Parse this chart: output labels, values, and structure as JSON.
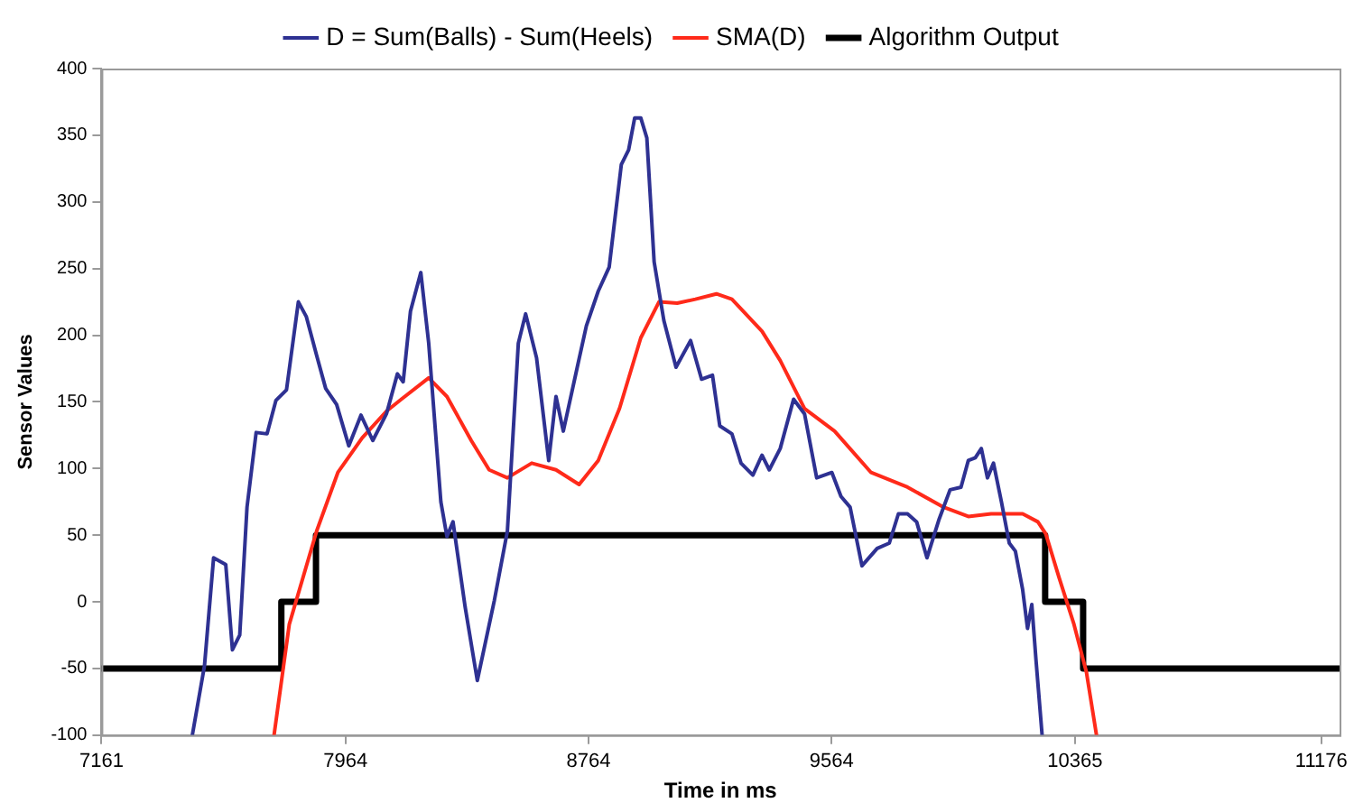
{
  "chart_data": {
    "type": "line",
    "xlabel": "Time in ms",
    "ylabel": "Sensor Values",
    "xlim": [
      7161,
      11236
    ],
    "xticks": [
      7161,
      7964,
      8764,
      9564,
      10365,
      11176
    ],
    "ylim": [
      -100,
      400
    ],
    "yticks": [
      -100,
      -50,
      0,
      50,
      100,
      150,
      200,
      250,
      300,
      350,
      400
    ],
    "legend": "top",
    "marker": "none",
    "series": [
      {
        "name": "D = Sum(Balls) - Sum(Heels)",
        "color": "#2e3192",
        "x": [
          7460,
          7500,
          7530,
          7570,
          7592,
          7616,
          7640,
          7670,
          7706,
          7735,
          7770,
          7809,
          7835,
          7869,
          7899,
          7935,
          7975,
          8015,
          8054,
          8099,
          8135,
          8154,
          8178,
          8212,
          8238,
          8278,
          8298,
          8318,
          8358,
          8398,
          8454,
          8497,
          8533,
          8557,
          8593,
          8633,
          8657,
          8681,
          8727,
          8757,
          8796,
          8832,
          8872,
          8896,
          8916,
          8936,
          8956,
          8980,
          9012,
          9052,
          9100,
          9136,
          9172,
          9196,
          9236,
          9266,
          9305,
          9335,
          9359,
          9395,
          9439,
          9475,
          9515,
          9565,
          9595,
          9625,
          9664,
          9714,
          9754,
          9784,
          9814,
          9844,
          9878,
          9918,
          9954,
          9990,
          10014,
          10037,
          10057,
          10077,
          10097,
          10123,
          10149,
          10169,
          10193,
          10209,
          10223,
          10237,
          10257
        ],
        "values": [
          -100,
          -48,
          33,
          28,
          -36,
          -25,
          71,
          127,
          126,
          151,
          159,
          225,
          214,
          185,
          160,
          148,
          117,
          140,
          121,
          141,
          171,
          165,
          218,
          247,
          194,
          75,
          49,
          60,
          -4,
          -59,
          1,
          53,
          194,
          216,
          183,
          106,
          154,
          128,
          176,
          207,
          233,
          251,
          328,
          339,
          363,
          363,
          348,
          255,
          211,
          176,
          196,
          167,
          170,
          132,
          126,
          104,
          95,
          110,
          99,
          115,
          152,
          141,
          93,
          97,
          79,
          71,
          27,
          40,
          44,
          66,
          66,
          60,
          33,
          62,
          84,
          86,
          106,
          108,
          115,
          93,
          104,
          75,
          44,
          38,
          9,
          -20,
          -2,
          -44,
          -100
        ]
      },
      {
        "name": "SMA(D)",
        "color": "#ff2a1a",
        "x": [
          7729,
          7779,
          7869,
          7939,
          8019,
          8099,
          8148,
          8238,
          8298,
          8378,
          8437,
          8497,
          8577,
          8657,
          8733,
          8796,
          8866,
          8936,
          8996,
          9056,
          9116,
          9185,
          9236,
          9335,
          9395,
          9475,
          9574,
          9694,
          9814,
          9933,
          10014,
          10089,
          10193,
          10243,
          10269,
          10313,
          10362,
          10403,
          10436
        ],
        "values": [
          -100,
          -17,
          53,
          97,
          123,
          143,
          152,
          168,
          154,
          121,
          99,
          93,
          104,
          99,
          88,
          106,
          145,
          198,
          225,
          224,
          227,
          231,
          227,
          203,
          181,
          145,
          128,
          97,
          86,
          71,
          64,
          66,
          66,
          60,
          51,
          18,
          -17,
          -53,
          -100
        ]
      },
      {
        "name": "Algorithm Output",
        "color": "#000000",
        "type": "step",
        "x": [
          7161,
          7753,
          7867,
          10267,
          10392,
          11236
        ],
        "values": [
          -50,
          0,
          50,
          0,
          -50,
          -50
        ]
      }
    ]
  }
}
